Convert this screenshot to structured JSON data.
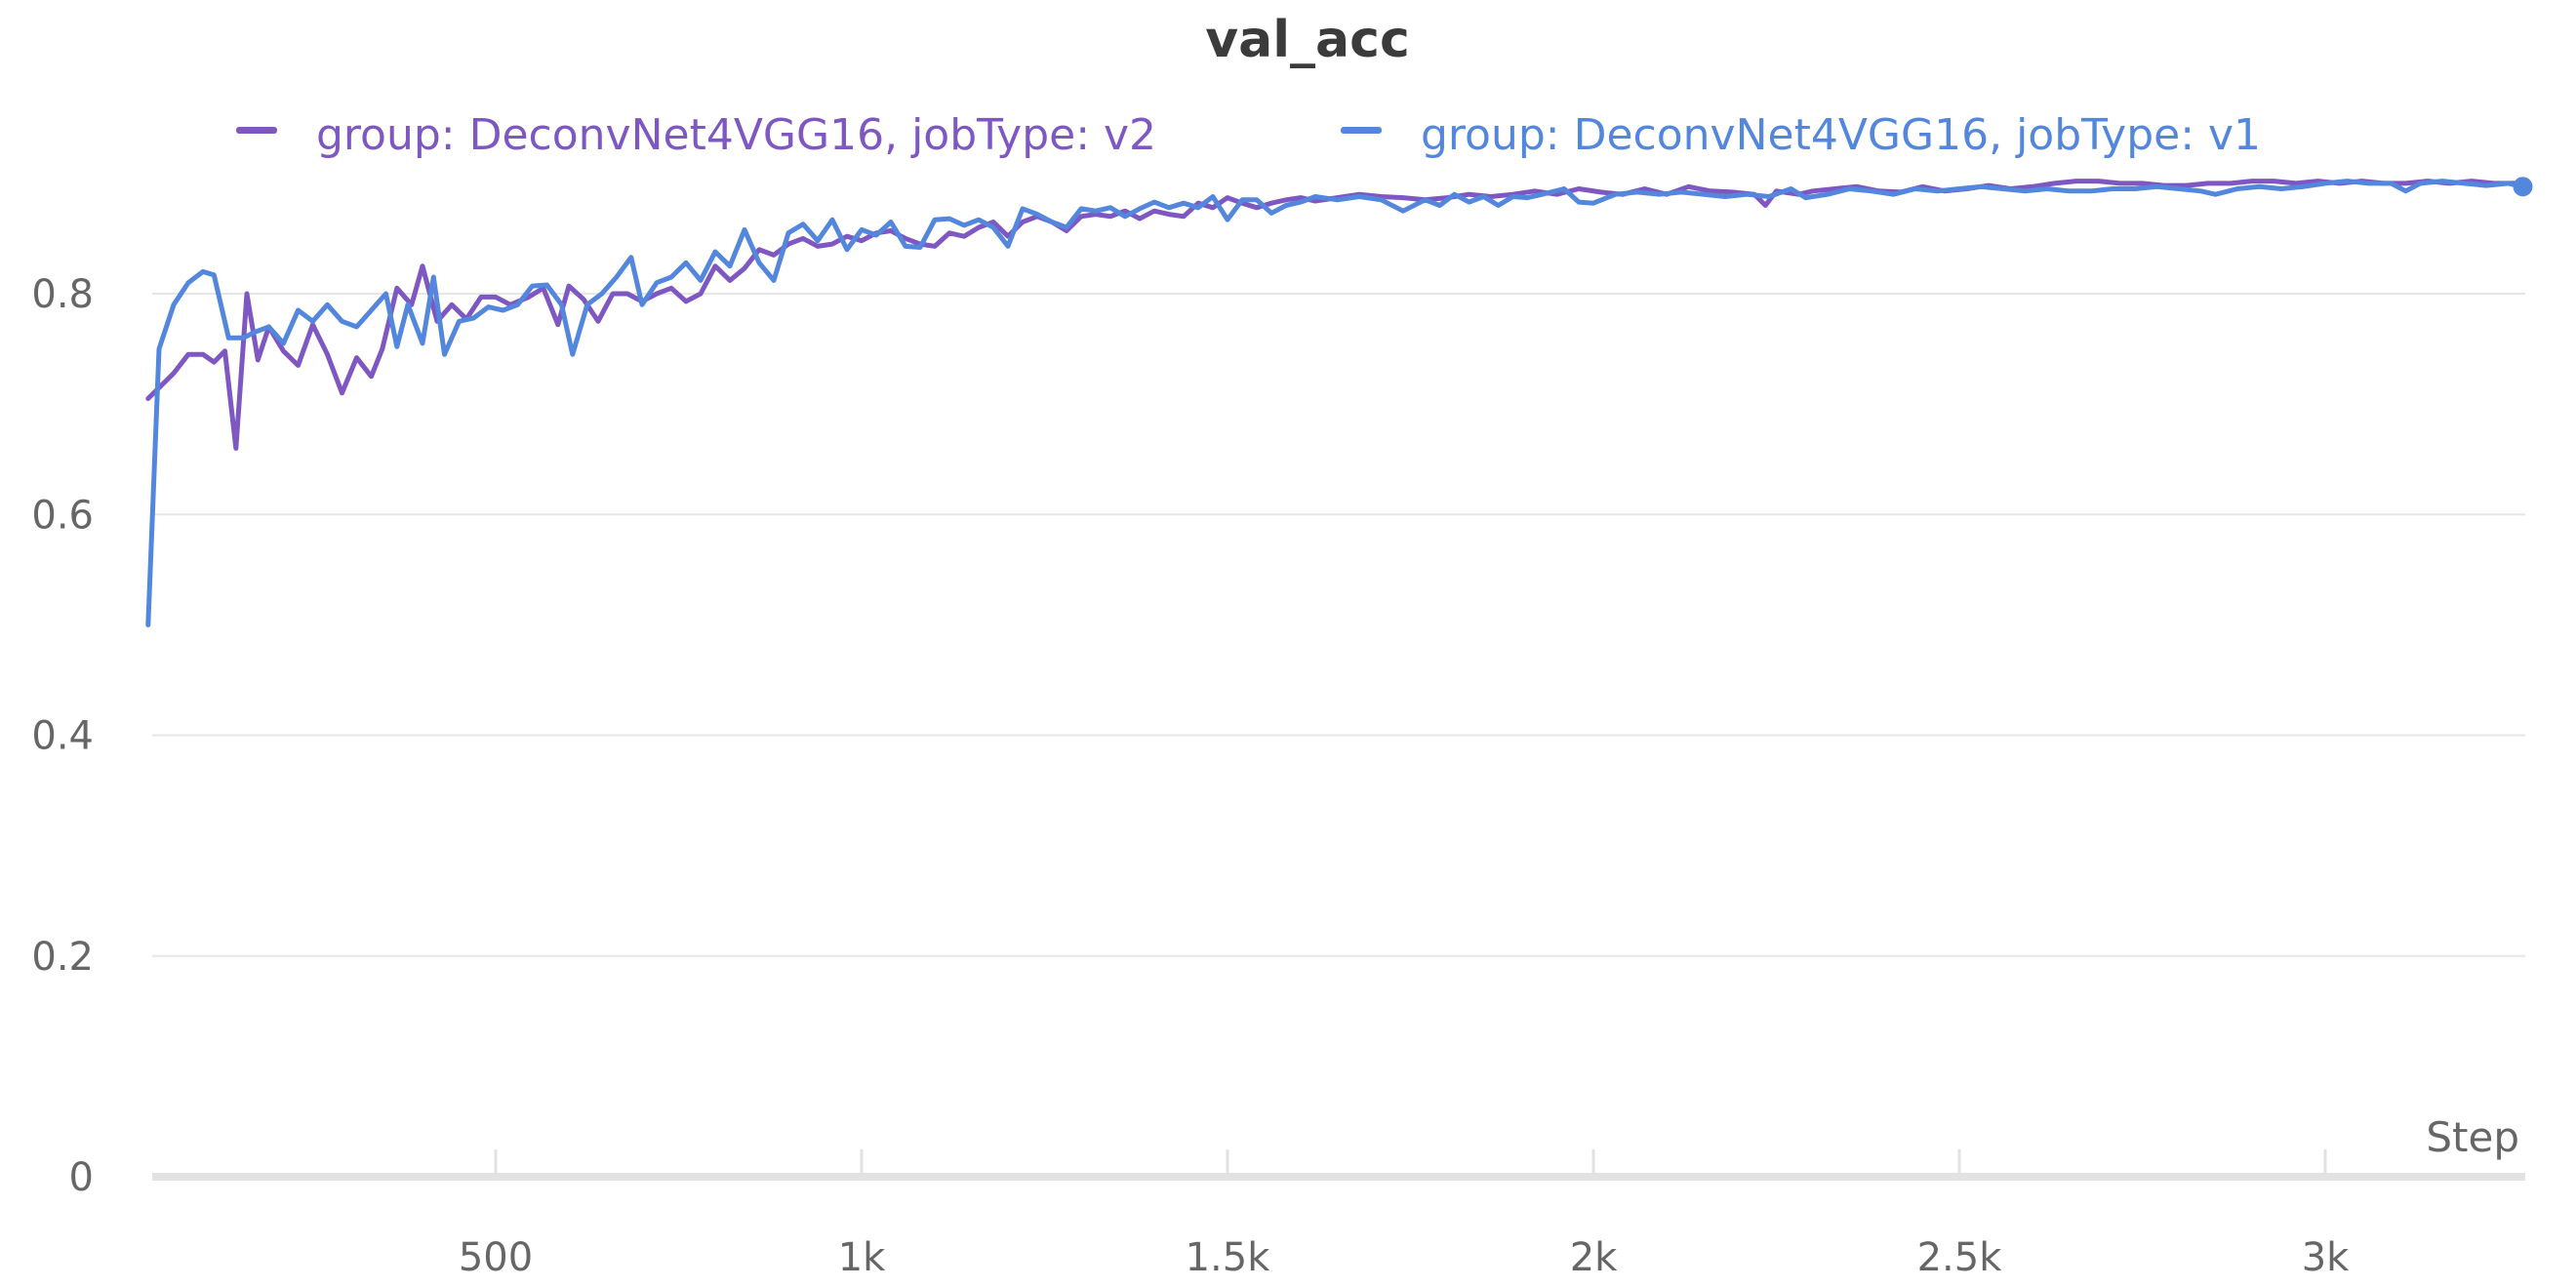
{
  "chart_data": {
    "type": "line",
    "title": "val_acc",
    "xlabel": "Step",
    "ylabel": "",
    "xlim": [
      0,
      3300
    ],
    "ylim": [
      0,
      0.92
    ],
    "x_ticks": [
      {
        "value": 500,
        "label": "500"
      },
      {
        "value": 1000,
        "label": "1k"
      },
      {
        "value": 1500,
        "label": "1.5k"
      },
      {
        "value": 2000,
        "label": "2k"
      },
      {
        "value": 2500,
        "label": "2.5k"
      },
      {
        "value": 3000,
        "label": "3k"
      }
    ],
    "y_ticks": [
      {
        "value": 0,
        "label": "0"
      },
      {
        "value": 0.2,
        "label": "0.2"
      },
      {
        "value": 0.4,
        "label": "0.4"
      },
      {
        "value": 0.6,
        "label": "0.6"
      },
      {
        "value": 0.8,
        "label": "0.8"
      }
    ],
    "grid": true,
    "legend_position": "top",
    "series": [
      {
        "name": "group: DeconvNet4VGG16, jobType: v2",
        "color": "#7E57C2",
        "points": [
          [
            25,
            0.705
          ],
          [
            60,
            0.728
          ],
          [
            80,
            0.745
          ],
          [
            100,
            0.745
          ],
          [
            115,
            0.738
          ],
          [
            130,
            0.748
          ],
          [
            145,
            0.66
          ],
          [
            160,
            0.8
          ],
          [
            175,
            0.74
          ],
          [
            190,
            0.77
          ],
          [
            210,
            0.748
          ],
          [
            230,
            0.735
          ],
          [
            250,
            0.772
          ],
          [
            270,
            0.745
          ],
          [
            290,
            0.71
          ],
          [
            310,
            0.742
          ],
          [
            330,
            0.725
          ],
          [
            345,
            0.75
          ],
          [
            365,
            0.805
          ],
          [
            385,
            0.79
          ],
          [
            400,
            0.825
          ],
          [
            420,
            0.775
          ],
          [
            440,
            0.79
          ],
          [
            460,
            0.777
          ],
          [
            480,
            0.797
          ],
          [
            500,
            0.797
          ],
          [
            520,
            0.79
          ],
          [
            545,
            0.797
          ],
          [
            565,
            0.805
          ],
          [
            585,
            0.772
          ],
          [
            600,
            0.807
          ],
          [
            620,
            0.795
          ],
          [
            640,
            0.775
          ],
          [
            660,
            0.8
          ],
          [
            680,
            0.8
          ],
          [
            700,
            0.793
          ],
          [
            720,
            0.8
          ],
          [
            740,
            0.805
          ],
          [
            760,
            0.793
          ],
          [
            780,
            0.8
          ],
          [
            800,
            0.825
          ],
          [
            820,
            0.812
          ],
          [
            840,
            0.823
          ],
          [
            860,
            0.84
          ],
          [
            880,
            0.835
          ],
          [
            900,
            0.845
          ],
          [
            920,
            0.85
          ],
          [
            940,
            0.843
          ],
          [
            960,
            0.845
          ],
          [
            980,
            0.852
          ],
          [
            1000,
            0.848
          ],
          [
            1020,
            0.855
          ],
          [
            1040,
            0.857
          ],
          [
            1060,
            0.85
          ],
          [
            1080,
            0.845
          ],
          [
            1100,
            0.843
          ],
          [
            1120,
            0.855
          ],
          [
            1140,
            0.852
          ],
          [
            1160,
            0.86
          ],
          [
            1180,
            0.865
          ],
          [
            1200,
            0.852
          ],
          [
            1220,
            0.865
          ],
          [
            1240,
            0.87
          ],
          [
            1260,
            0.865
          ],
          [
            1280,
            0.857
          ],
          [
            1300,
            0.87
          ],
          [
            1320,
            0.872
          ],
          [
            1340,
            0.87
          ],
          [
            1360,
            0.875
          ],
          [
            1380,
            0.868
          ],
          [
            1400,
            0.875
          ],
          [
            1420,
            0.872
          ],
          [
            1440,
            0.87
          ],
          [
            1460,
            0.882
          ],
          [
            1480,
            0.878
          ],
          [
            1500,
            0.887
          ],
          [
            1520,
            0.882
          ],
          [
            1540,
            0.878
          ],
          [
            1560,
            0.882
          ],
          [
            1580,
            0.885
          ],
          [
            1600,
            0.887
          ],
          [
            1620,
            0.884
          ],
          [
            1650,
            0.887
          ],
          [
            1680,
            0.89
          ],
          [
            1710,
            0.888
          ],
          [
            1740,
            0.887
          ],
          [
            1770,
            0.885
          ],
          [
            1800,
            0.887
          ],
          [
            1830,
            0.89
          ],
          [
            1860,
            0.888
          ],
          [
            1890,
            0.89
          ],
          [
            1920,
            0.893
          ],
          [
            1950,
            0.89
          ],
          [
            1980,
            0.895
          ],
          [
            2010,
            0.892
          ],
          [
            2040,
            0.89
          ],
          [
            2070,
            0.895
          ],
          [
            2100,
            0.89
          ],
          [
            2130,
            0.897
          ],
          [
            2160,
            0.893
          ],
          [
            2190,
            0.892
          ],
          [
            2220,
            0.89
          ],
          [
            2235,
            0.88
          ],
          [
            2250,
            0.893
          ],
          [
            2280,
            0.89
          ],
          [
            2300,
            0.893
          ],
          [
            2330,
            0.895
          ],
          [
            2360,
            0.897
          ],
          [
            2390,
            0.893
          ],
          [
            2420,
            0.892
          ],
          [
            2450,
            0.897
          ],
          [
            2480,
            0.893
          ],
          [
            2510,
            0.895
          ],
          [
            2540,
            0.898
          ],
          [
            2570,
            0.895
          ],
          [
            2600,
            0.897
          ],
          [
            2630,
            0.9
          ],
          [
            2660,
            0.902
          ],
          [
            2690,
            0.902
          ],
          [
            2720,
            0.9
          ],
          [
            2750,
            0.9
          ],
          [
            2780,
            0.898
          ],
          [
            2810,
            0.898
          ],
          [
            2840,
            0.9
          ],
          [
            2870,
            0.9
          ],
          [
            2900,
            0.902
          ],
          [
            2930,
            0.902
          ],
          [
            2960,
            0.9
          ],
          [
            2990,
            0.902
          ],
          [
            3020,
            0.9
          ],
          [
            3050,
            0.902
          ],
          [
            3080,
            0.9
          ],
          [
            3110,
            0.9
          ],
          [
            3140,
            0.902
          ],
          [
            3170,
            0.9
          ],
          [
            3200,
            0.902
          ],
          [
            3230,
            0.9
          ],
          [
            3270,
            0.9
          ]
        ]
      },
      {
        "name": "group: DeconvNet4VGG16, jobType: v1",
        "color": "#5387DD",
        "points": [
          [
            25,
            0.5
          ],
          [
            40,
            0.75
          ],
          [
            60,
            0.79
          ],
          [
            80,
            0.81
          ],
          [
            100,
            0.82
          ],
          [
            115,
            0.817
          ],
          [
            135,
            0.76
          ],
          [
            155,
            0.76
          ],
          [
            170,
            0.765
          ],
          [
            190,
            0.77
          ],
          [
            210,
            0.755
          ],
          [
            230,
            0.785
          ],
          [
            250,
            0.775
          ],
          [
            270,
            0.79
          ],
          [
            290,
            0.775
          ],
          [
            310,
            0.77
          ],
          [
            330,
            0.785
          ],
          [
            350,
            0.8
          ],
          [
            365,
            0.752
          ],
          [
            380,
            0.79
          ],
          [
            400,
            0.755
          ],
          [
            415,
            0.815
          ],
          [
            430,
            0.745
          ],
          [
            450,
            0.775
          ],
          [
            470,
            0.778
          ],
          [
            490,
            0.788
          ],
          [
            510,
            0.785
          ],
          [
            530,
            0.79
          ],
          [
            550,
            0.807
          ],
          [
            570,
            0.808
          ],
          [
            590,
            0.79
          ],
          [
            605,
            0.745
          ],
          [
            625,
            0.79
          ],
          [
            645,
            0.8
          ],
          [
            665,
            0.815
          ],
          [
            685,
            0.833
          ],
          [
            700,
            0.79
          ],
          [
            720,
            0.81
          ],
          [
            740,
            0.815
          ],
          [
            760,
            0.828
          ],
          [
            780,
            0.812
          ],
          [
            800,
            0.838
          ],
          [
            820,
            0.825
          ],
          [
            840,
            0.858
          ],
          [
            860,
            0.828
          ],
          [
            880,
            0.812
          ],
          [
            900,
            0.855
          ],
          [
            920,
            0.863
          ],
          [
            940,
            0.848
          ],
          [
            960,
            0.867
          ],
          [
            980,
            0.84
          ],
          [
            1000,
            0.858
          ],
          [
            1020,
            0.853
          ],
          [
            1040,
            0.865
          ],
          [
            1060,
            0.843
          ],
          [
            1080,
            0.842
          ],
          [
            1100,
            0.867
          ],
          [
            1120,
            0.868
          ],
          [
            1140,
            0.862
          ],
          [
            1160,
            0.867
          ],
          [
            1180,
            0.86
          ],
          [
            1200,
            0.843
          ],
          [
            1220,
            0.877
          ],
          [
            1240,
            0.872
          ],
          [
            1260,
            0.865
          ],
          [
            1280,
            0.86
          ],
          [
            1300,
            0.877
          ],
          [
            1320,
            0.875
          ],
          [
            1340,
            0.878
          ],
          [
            1360,
            0.87
          ],
          [
            1380,
            0.877
          ],
          [
            1400,
            0.883
          ],
          [
            1420,
            0.878
          ],
          [
            1440,
            0.882
          ],
          [
            1460,
            0.878
          ],
          [
            1480,
            0.888
          ],
          [
            1500,
            0.867
          ],
          [
            1520,
            0.885
          ],
          [
            1540,
            0.885
          ],
          [
            1560,
            0.873
          ],
          [
            1580,
            0.88
          ],
          [
            1600,
            0.883
          ],
          [
            1620,
            0.888
          ],
          [
            1650,
            0.885
          ],
          [
            1680,
            0.888
          ],
          [
            1710,
            0.885
          ],
          [
            1740,
            0.875
          ],
          [
            1770,
            0.885
          ],
          [
            1790,
            0.88
          ],
          [
            1810,
            0.89
          ],
          [
            1830,
            0.883
          ],
          [
            1850,
            0.888
          ],
          [
            1870,
            0.88
          ],
          [
            1890,
            0.888
          ],
          [
            1910,
            0.887
          ],
          [
            1930,
            0.89
          ],
          [
            1960,
            0.895
          ],
          [
            1980,
            0.883
          ],
          [
            2000,
            0.882
          ],
          [
            2030,
            0.89
          ],
          [
            2060,
            0.892
          ],
          [
            2090,
            0.89
          ],
          [
            2120,
            0.892
          ],
          [
            2150,
            0.89
          ],
          [
            2180,
            0.888
          ],
          [
            2210,
            0.89
          ],
          [
            2240,
            0.888
          ],
          [
            2270,
            0.895
          ],
          [
            2290,
            0.887
          ],
          [
            2320,
            0.89
          ],
          [
            2350,
            0.895
          ],
          [
            2380,
            0.893
          ],
          [
            2410,
            0.89
          ],
          [
            2440,
            0.895
          ],
          [
            2470,
            0.893
          ],
          [
            2500,
            0.895
          ],
          [
            2530,
            0.897
          ],
          [
            2560,
            0.895
          ],
          [
            2590,
            0.893
          ],
          [
            2620,
            0.895
          ],
          [
            2650,
            0.893
          ],
          [
            2680,
            0.893
          ],
          [
            2710,
            0.895
          ],
          [
            2740,
            0.895
          ],
          [
            2770,
            0.897
          ],
          [
            2800,
            0.895
          ],
          [
            2830,
            0.893
          ],
          [
            2850,
            0.89
          ],
          [
            2880,
            0.895
          ],
          [
            2910,
            0.897
          ],
          [
            2940,
            0.895
          ],
          [
            2970,
            0.897
          ],
          [
            3000,
            0.9
          ],
          [
            3030,
            0.902
          ],
          [
            3060,
            0.9
          ],
          [
            3090,
            0.9
          ],
          [
            3110,
            0.893
          ],
          [
            3130,
            0.9
          ],
          [
            3160,
            0.902
          ],
          [
            3190,
            0.9
          ],
          [
            3220,
            0.898
          ],
          [
            3250,
            0.9
          ],
          [
            3270,
            0.897
          ]
        ]
      }
    ]
  }
}
